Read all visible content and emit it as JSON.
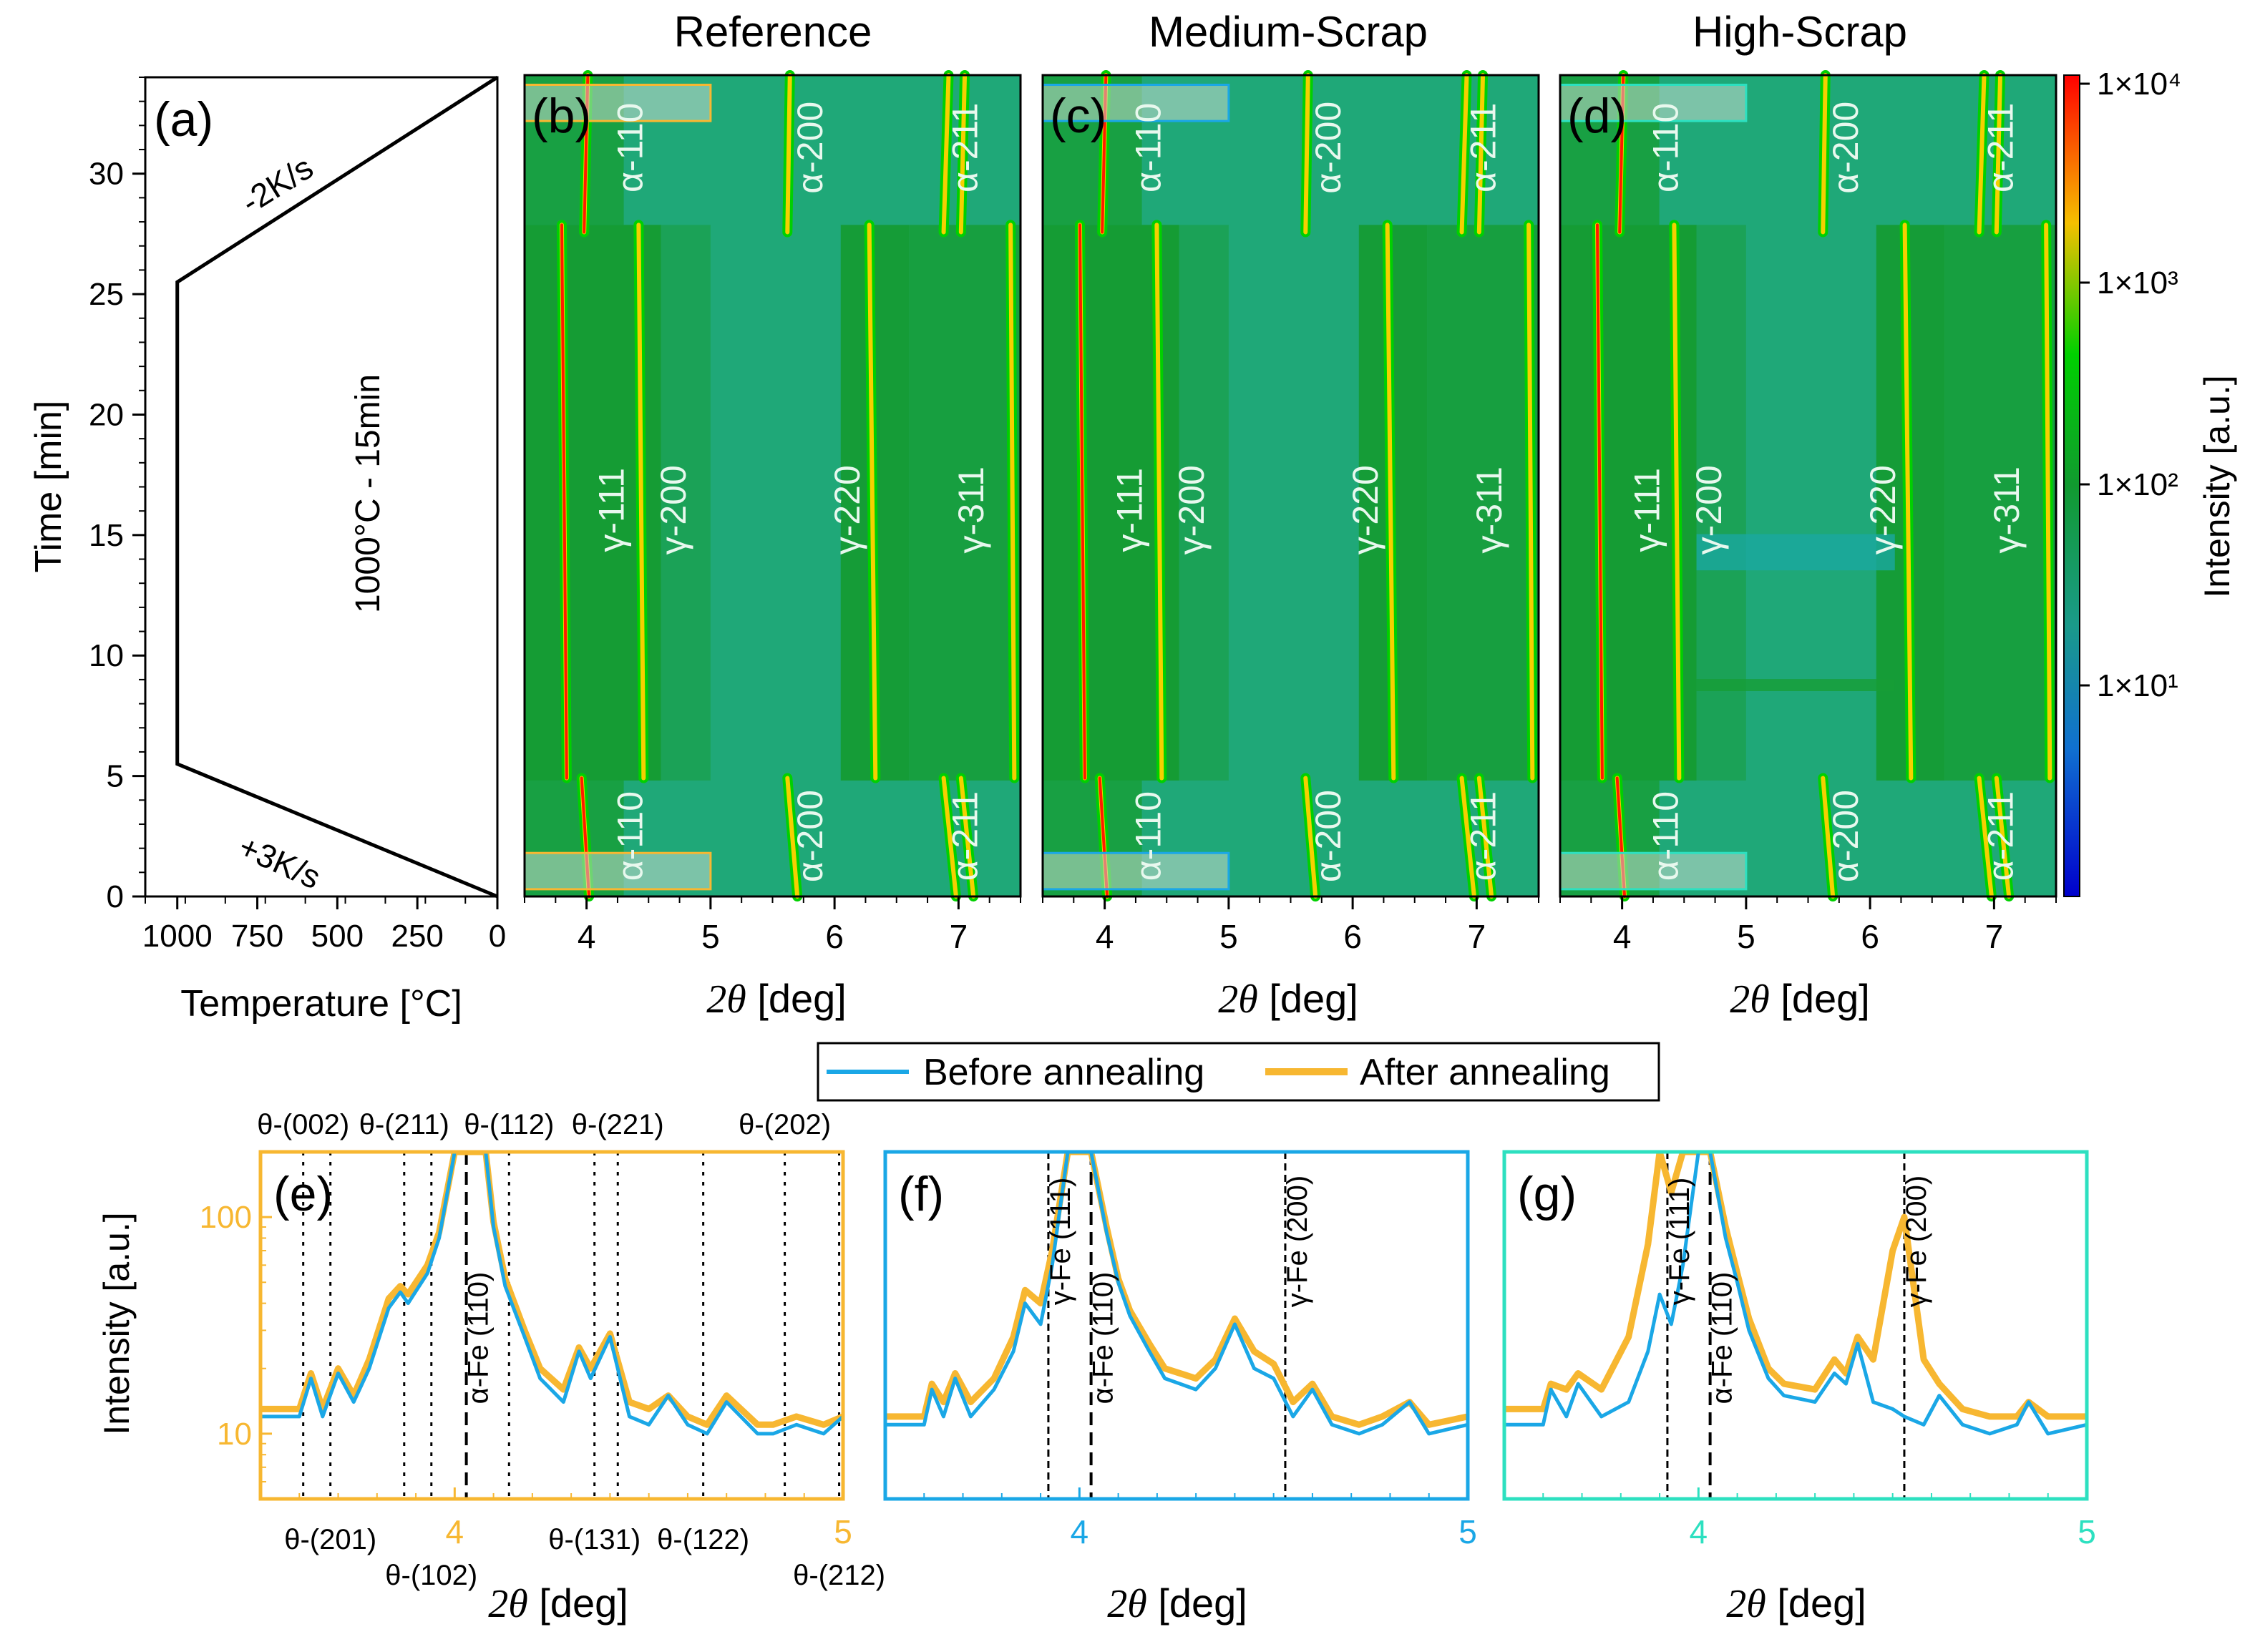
{
  "figure": {
    "panel_titles": [
      "Reference",
      "Medium-Scrap",
      "High-Scrap"
    ],
    "colorbar": {
      "label": "Intensity [a.u.]",
      "ticks": [
        "1×10⁴",
        "1×10³",
        "1×10²",
        "1×10¹"
      ],
      "colors": [
        "#ff0000",
        "#f5c000",
        "#00d000",
        "#1a9a5a",
        "#1070d0",
        "#0000cc"
      ]
    },
    "legend": {
      "before": "Before annealing",
      "after": "After annealing"
    },
    "colors": {
      "before": "#1aa7e6",
      "after": "#f7b731",
      "panel_e": "#f7b731",
      "panel_f": "#1aa7e6",
      "panel_g": "#2de0c0"
    }
  },
  "chart_data": [
    {
      "panel": "(a)",
      "type": "line",
      "xlabel": "Temperature [°C]",
      "ylabel": "Time [min]",
      "xlim": [
        1100,
        0
      ],
      "ylim": [
        0,
        34
      ],
      "xticks": [
        1000,
        750,
        500,
        250,
        0
      ],
      "yticks": [
        0,
        5,
        10,
        15,
        20,
        25,
        30
      ],
      "x": [
        0,
        1000,
        1000,
        0
      ],
      "y": [
        0,
        5.5,
        25.5,
        34
      ],
      "annotations": [
        "+3K/s",
        "1000°C - 15min",
        "-2K/s"
      ]
    },
    {
      "panel": "(b)",
      "type": "heatmap",
      "title": "Reference",
      "xlabel": "2θ [deg]",
      "xlim": [
        3.5,
        7.5
      ],
      "ylim": [
        0,
        34
      ],
      "xticks": [
        4,
        5,
        6,
        7
      ],
      "peak_labels": [
        "α-110",
        "α-200",
        "α-211",
        "γ-111",
        "γ-200",
        "γ-220",
        "γ-311",
        "α-110",
        "α-200",
        "α-211"
      ]
    },
    {
      "panel": "(c)",
      "type": "heatmap",
      "title": "Medium-Scrap",
      "xlabel": "2θ [deg]",
      "xlim": [
        3.5,
        7.5
      ],
      "ylim": [
        0,
        34
      ],
      "xticks": [
        4,
        5,
        6,
        7
      ],
      "peak_labels": [
        "α-110",
        "α-200",
        "α-211",
        "γ-111",
        "γ-200",
        "γ-220",
        "γ-311",
        "α-110",
        "α-200",
        "α-211"
      ]
    },
    {
      "panel": "(d)",
      "type": "heatmap",
      "title": "High-Scrap",
      "xlabel": "2θ [deg]",
      "xlim": [
        3.5,
        7.5
      ],
      "ylim": [
        0,
        34
      ],
      "xticks": [
        4,
        5,
        6,
        7
      ],
      "peak_labels": [
        "α-110",
        "α-200",
        "α-211",
        "γ-111",
        "γ-200",
        "γ-220",
        "γ-311",
        "α-110",
        "α-200",
        "α-211"
      ]
    },
    {
      "panel": "(e)",
      "type": "line",
      "xlabel": "2θ [deg]",
      "ylabel": "Intensity [a.u.]",
      "xlim": [
        3.5,
        5
      ],
      "ylim": [
        5,
        200
      ],
      "yscale": "log",
      "xticks": [
        4,
        5
      ],
      "yticks": [
        10,
        100
      ],
      "series": [
        {
          "name": "Before annealing",
          "x": [
            3.5,
            3.6,
            3.63,
            3.66,
            3.7,
            3.74,
            3.78,
            3.83,
            3.86,
            3.88,
            3.93,
            3.96,
            4.0,
            4.03,
            4.08,
            4.1,
            4.13,
            4.18,
            4.22,
            4.28,
            4.32,
            4.35,
            4.4,
            4.45,
            4.5,
            4.55,
            4.6,
            4.65,
            4.7,
            4.78,
            4.82,
            4.88,
            4.95,
            5.0
          ],
          "y": [
            12,
            12,
            18,
            12,
            19,
            14,
            20,
            38,
            45,
            40,
            55,
            80,
            200,
            200,
            200,
            90,
            48,
            28,
            18,
            14,
            24,
            18,
            28,
            12,
            11,
            15,
            11,
            10,
            14,
            10,
            10,
            11,
            10,
            12
          ]
        },
        {
          "name": "After annealing",
          "x": [
            3.5,
            3.6,
            3.63,
            3.66,
            3.7,
            3.74,
            3.78,
            3.83,
            3.86,
            3.88,
            3.93,
            3.96,
            4.0,
            4.03,
            4.08,
            4.1,
            4.13,
            4.18,
            4.22,
            4.28,
            4.32,
            4.35,
            4.4,
            4.45,
            4.5,
            4.55,
            4.6,
            4.65,
            4.7,
            4.78,
            4.82,
            4.88,
            4.95,
            5.0
          ],
          "y": [
            13,
            13,
            19,
            13,
            20,
            15,
            22,
            42,
            48,
            44,
            60,
            85,
            200,
            200,
            200,
            95,
            52,
            30,
            20,
            16,
            25,
            20,
            29,
            14,
            13,
            15,
            12,
            11,
            15,
            11,
            11,
            12,
            11,
            12
          ]
        }
      ],
      "reference_lines": [
        {
          "label": "θ-(002)",
          "x": 3.61
        },
        {
          "label": "θ-(201)",
          "x": 3.68
        },
        {
          "label": "θ-(211)",
          "x": 3.87
        },
        {
          "label": "θ-(102)",
          "x": 3.94
        },
        {
          "label": "α-Fe (110)",
          "x": 4.03
        },
        {
          "label": "θ-(112)",
          "x": 4.14
        },
        {
          "label": "θ-(131)",
          "x": 4.36
        },
        {
          "label": "θ-(221)",
          "x": 4.42
        },
        {
          "label": "θ-(122)",
          "x": 4.64
        },
        {
          "label": "θ-(202)",
          "x": 4.85
        },
        {
          "label": "θ-(212)",
          "x": 4.99
        }
      ]
    },
    {
      "panel": "(f)",
      "type": "line",
      "xlabel": "2θ [deg]",
      "xlim": [
        3.5,
        5
      ],
      "ylim": [
        5,
        200
      ],
      "yscale": "log",
      "xticks": [
        4,
        5
      ],
      "series": [
        {
          "name": "Before annealing",
          "x": [
            3.5,
            3.6,
            3.62,
            3.65,
            3.68,
            3.72,
            3.78,
            3.83,
            3.86,
            3.9,
            3.93,
            3.97,
            4.0,
            4.03,
            4.07,
            4.1,
            4.13,
            4.18,
            4.22,
            4.3,
            4.35,
            4.4,
            4.45,
            4.5,
            4.55,
            4.6,
            4.65,
            4.72,
            4.78,
            4.85,
            4.9,
            5.0
          ],
          "y": [
            11,
            11,
            16,
            12,
            18,
            12,
            16,
            24,
            40,
            32,
            60,
            200,
            200,
            200,
            85,
            50,
            35,
            24,
            18,
            16,
            20,
            32,
            20,
            18,
            12,
            16,
            11,
            10,
            11,
            14,
            10,
            11
          ]
        },
        {
          "name": "After annealing",
          "x": [
            3.5,
            3.6,
            3.62,
            3.65,
            3.68,
            3.72,
            3.78,
            3.83,
            3.86,
            3.9,
            3.93,
            3.97,
            4.0,
            4.03,
            4.07,
            4.1,
            4.13,
            4.18,
            4.22,
            4.3,
            4.35,
            4.4,
            4.45,
            4.5,
            4.55,
            4.6,
            4.65,
            4.72,
            4.78,
            4.85,
            4.9,
            5.0
          ],
          "y": [
            12,
            12,
            17,
            14,
            19,
            14,
            18,
            28,
            46,
            40,
            70,
            200,
            200,
            200,
            90,
            52,
            37,
            26,
            20,
            18,
            22,
            34,
            24,
            21,
            14,
            17,
            12,
            11,
            12,
            14,
            11,
            12
          ]
        }
      ],
      "reference_lines": [
        {
          "label": "γ-Fe (111)",
          "x": 3.92
        },
        {
          "label": "α-Fe (110)",
          "x": 4.03
        },
        {
          "label": "γ-Fe (200)",
          "x": 4.53
        }
      ]
    },
    {
      "panel": "(g)",
      "type": "line",
      "xlabel": "2θ [deg]",
      "xlim": [
        3.5,
        5
      ],
      "ylim": [
        5,
        200
      ],
      "yscale": "log",
      "xticks": [
        4,
        5
      ],
      "series": [
        {
          "name": "Before annealing",
          "x": [
            3.5,
            3.6,
            3.62,
            3.66,
            3.69,
            3.75,
            3.82,
            3.87,
            3.9,
            3.93,
            3.96,
            4.0,
            4.03,
            4.07,
            4.1,
            4.13,
            4.18,
            4.22,
            4.3,
            4.35,
            4.38,
            4.41,
            4.45,
            4.5,
            4.53,
            4.58,
            4.62,
            4.68,
            4.75,
            4.82,
            4.85,
            4.9,
            5.0
          ],
          "y": [
            11,
            11,
            16,
            12,
            17,
            12,
            14,
            24,
            44,
            32,
            60,
            200,
            200,
            80,
            50,
            30,
            18,
            15,
            14,
            19,
            17,
            26,
            14,
            13,
            12,
            11,
            15,
            11,
            10,
            11,
            14,
            10,
            11
          ]
        },
        {
          "name": "After annealing",
          "x": [
            3.5,
            3.6,
            3.62,
            3.66,
            3.69,
            3.75,
            3.82,
            3.87,
            3.9,
            3.93,
            3.96,
            4.0,
            4.03,
            4.07,
            4.1,
            4.13,
            4.18,
            4.22,
            4.3,
            4.35,
            4.38,
            4.41,
            4.45,
            4.5,
            4.53,
            4.58,
            4.62,
            4.68,
            4.75,
            4.82,
            4.85,
            4.9,
            5.0
          ],
          "y": [
            13,
            13,
            17,
            16,
            19,
            16,
            28,
            75,
            200,
            130,
            200,
            200,
            200,
            90,
            55,
            34,
            20,
            17,
            16,
            22,
            19,
            28,
            22,
            70,
            100,
            22,
            17,
            13,
            12,
            12,
            14,
            12,
            12
          ]
        }
      ],
      "reference_lines": [
        {
          "label": "γ-Fe (111)",
          "x": 3.92
        },
        {
          "label": "α-Fe (110)",
          "x": 4.03
        },
        {
          "label": "γ-Fe (200)",
          "x": 4.53
        }
      ]
    }
  ]
}
